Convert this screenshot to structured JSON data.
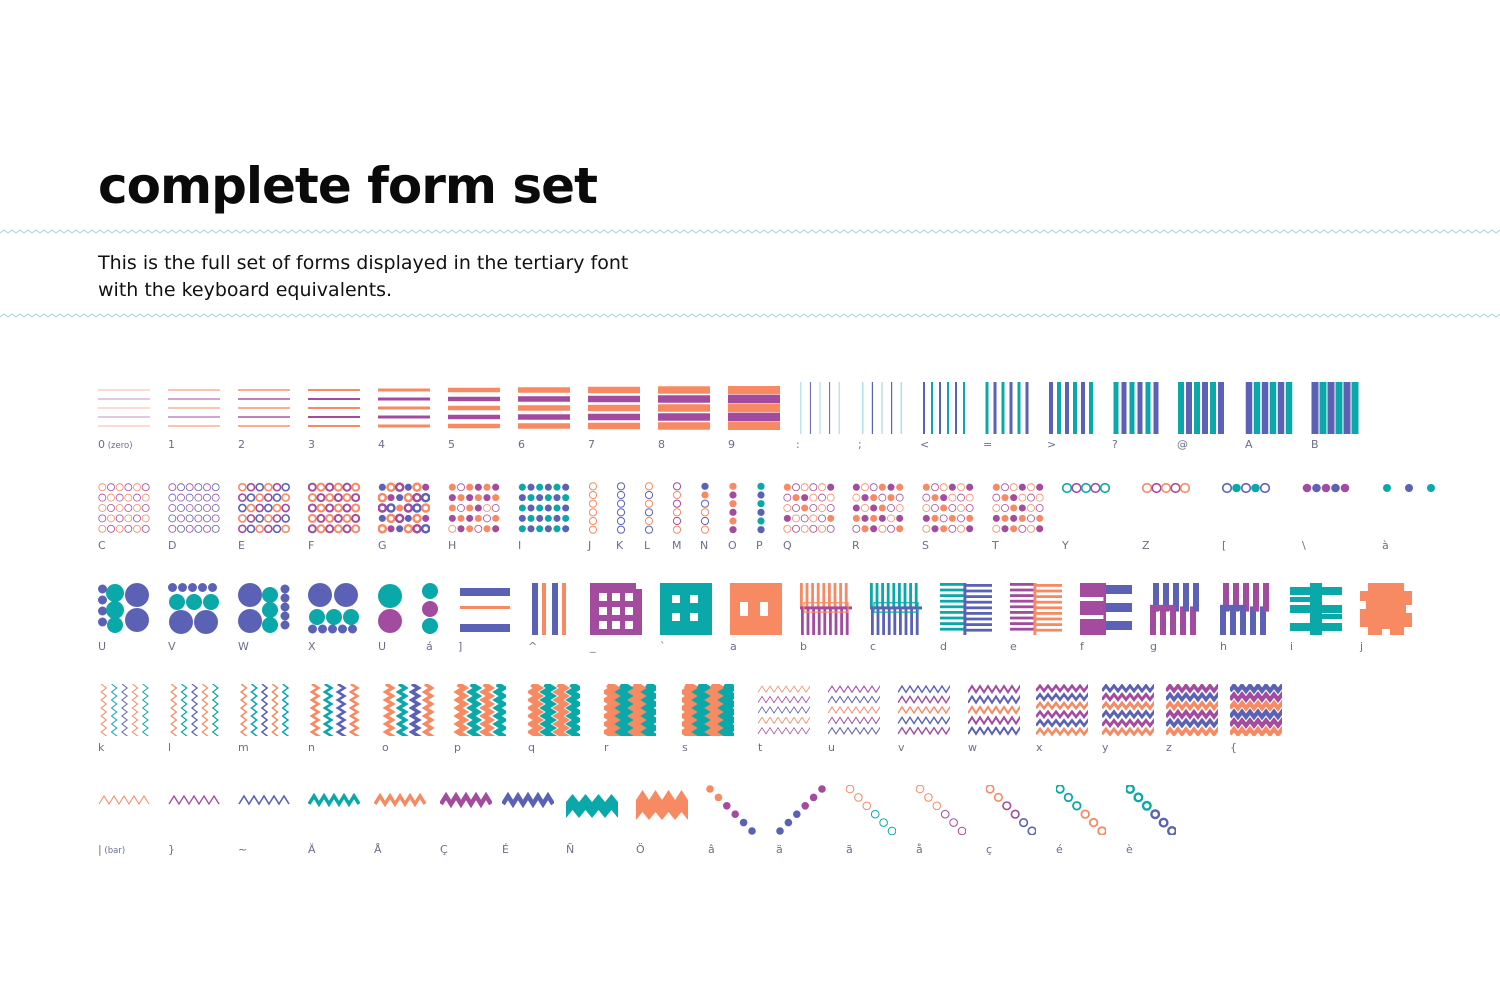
{
  "title": "complete form set",
  "subtitle_lines": [
    "This is the full set of forms displayed in the tertiary font",
    "with the keyboard equivalents."
  ],
  "palette": {
    "orange": "#f78a62",
    "purple": "#a24b9f",
    "blue": "#5b62b5",
    "teal": "#0aa8a8",
    "wave": "#9fd8e3",
    "caption": "#6a6f8a"
  },
  "rows": [
    [
      {
        "key": "0",
        "note": "(zero)",
        "form": {
          "kind": "hlines",
          "n": 5,
          "w": 0.6,
          "colors": [
            "orange",
            "purple"
          ]
        }
      },
      {
        "key": "1",
        "form": {
          "kind": "hlines",
          "n": 5,
          "w": 1,
          "colors": [
            "orange",
            "purple"
          ]
        }
      },
      {
        "key": "2",
        "form": {
          "kind": "hlines",
          "n": 5,
          "w": 1.4,
          "colors": [
            "orange",
            "purple"
          ]
        }
      },
      {
        "key": "3",
        "form": {
          "kind": "hlines",
          "n": 5,
          "w": 2,
          "colors": [
            "orange",
            "purple"
          ]
        }
      },
      {
        "key": "4",
        "form": {
          "kind": "hlines",
          "n": 5,
          "w": 3,
          "colors": [
            "orange",
            "purple"
          ]
        }
      },
      {
        "key": "5",
        "form": {
          "kind": "hlines",
          "n": 5,
          "w": 4.5,
          "colors": [
            "orange",
            "purple"
          ]
        }
      },
      {
        "key": "6",
        "form": {
          "kind": "hlines",
          "n": 5,
          "w": 5.5,
          "colors": [
            "orange",
            "purple"
          ]
        }
      },
      {
        "key": "7",
        "form": {
          "kind": "hlines",
          "n": 5,
          "w": 6.5,
          "colors": [
            "orange",
            "purple"
          ]
        }
      },
      {
        "key": "8",
        "form": {
          "kind": "hlines",
          "n": 5,
          "w": 7.5,
          "colors": [
            "orange",
            "purple"
          ]
        }
      },
      {
        "key": "9",
        "form": {
          "kind": "hlines",
          "n": 5,
          "w": 8.5,
          "colors": [
            "orange",
            "purple"
          ]
        }
      },
      {
        "key": ":",
        "form": {
          "kind": "vlines",
          "n": 5,
          "w": 1,
          "colors": [
            "wave",
            "blue"
          ]
        }
      },
      {
        "key": ";",
        "form": {
          "kind": "vlines",
          "n": 5,
          "w": 1.2,
          "colors": [
            "wave",
            "blue"
          ]
        }
      },
      {
        "key": "<",
        "form": {
          "kind": "vlines",
          "n": 6,
          "w": 2,
          "colors": [
            "blue",
            "teal"
          ]
        }
      },
      {
        "key": "=",
        "form": {
          "kind": "vlines",
          "n": 6,
          "w": 3,
          "colors": [
            "teal",
            "blue"
          ]
        }
      },
      {
        "key": ">",
        "form": {
          "kind": "vlines",
          "n": 6,
          "w": 4,
          "colors": [
            "blue",
            "teal"
          ]
        }
      },
      {
        "key": "?",
        "form": {
          "kind": "vlines",
          "n": 6,
          "w": 5,
          "colors": [
            "teal",
            "blue"
          ]
        }
      },
      {
        "key": "@",
        "form": {
          "kind": "vlines",
          "n": 6,
          "w": 6,
          "colors": [
            "teal",
            "blue"
          ]
        }
      },
      {
        "key": "A",
        "form": {
          "kind": "vlines",
          "n": 6,
          "w": 6.5,
          "colors": [
            "blue",
            "teal"
          ]
        }
      },
      {
        "key": "B",
        "form": {
          "kind": "vlines",
          "n": 6,
          "w": 7,
          "colors": [
            "blue",
            "teal"
          ]
        }
      }
    ],
    [
      {
        "key": "C",
        "form": {
          "kind": "dots",
          "cols": 6,
          "rows": 5,
          "fill": 0,
          "colors": [
            "orange",
            "purple"
          ]
        }
      },
      {
        "key": "D",
        "form": {
          "kind": "dots",
          "cols": 6,
          "rows": 5,
          "fill": 0,
          "colors": [
            "purple",
            "blue"
          ]
        }
      },
      {
        "key": "E",
        "form": {
          "kind": "dots",
          "cols": 6,
          "rows": 5,
          "fill": 0,
          "sw": 1.6,
          "colors": [
            "orange",
            "purple",
            "blue"
          ]
        }
      },
      {
        "key": "F",
        "form": {
          "kind": "dots",
          "cols": 6,
          "rows": 5,
          "fill": 0,
          "sw": 2,
          "colors": [
            "purple",
            "orange"
          ]
        }
      },
      {
        "key": "G",
        "form": {
          "kind": "dots",
          "cols": 6,
          "rows": 5,
          "fill": 0.3,
          "sw": 2.5,
          "colors": [
            "blue",
            "orange",
            "purple"
          ]
        }
      },
      {
        "key": "H",
        "form": {
          "kind": "dots",
          "cols": 6,
          "rows": 5,
          "fill": 0.6,
          "colors": [
            "orange",
            "purple"
          ]
        }
      },
      {
        "key": "I",
        "form": {
          "kind": "dots",
          "cols": 6,
          "rows": 5,
          "fill": 1,
          "colors": [
            "teal",
            "blue"
          ]
        }
      },
      {
        "key": "J",
        "form": {
          "kind": "dotcol",
          "fill": 0,
          "colors": [
            "orange"
          ]
        }
      },
      {
        "key": "K",
        "form": {
          "kind": "dotcol",
          "fill": 0,
          "colors": [
            "blue"
          ]
        }
      },
      {
        "key": "L",
        "form": {
          "kind": "dotcol",
          "fill": 0,
          "colors": [
            "orange",
            "blue"
          ]
        }
      },
      {
        "key": "M",
        "form": {
          "kind": "dotcol",
          "fill": 0,
          "colors": [
            "purple",
            "orange"
          ]
        }
      },
      {
        "key": "N",
        "form": {
          "kind": "dotcol",
          "fill": 0.3,
          "colors": [
            "blue",
            "orange"
          ]
        }
      },
      {
        "key": "O",
        "form": {
          "kind": "dotcol",
          "fill": 1,
          "colors": [
            "orange",
            "purple"
          ]
        }
      },
      {
        "key": "P",
        "form": {
          "kind": "dotcol",
          "fill": 1,
          "colors": [
            "teal",
            "blue"
          ]
        }
      },
      {
        "key": "Q",
        "form": {
          "kind": "dots",
          "cols": 6,
          "rows": 5,
          "fill": 0.2,
          "colors": [
            "orange",
            "purple"
          ]
        }
      },
      {
        "key": "R",
        "form": {
          "kind": "dots",
          "cols": 6,
          "rows": 5,
          "fill": 0.5,
          "colors": [
            "purple",
            "orange"
          ]
        }
      },
      {
        "key": "S",
        "form": {
          "kind": "dots",
          "cols": 6,
          "rows": 5,
          "fill": 0.35,
          "colors": [
            "orange",
            "purple"
          ]
        }
      },
      {
        "key": "T",
        "form": {
          "kind": "dots",
          "cols": 6,
          "rows": 5,
          "fill": 0.4,
          "colors": [
            "orange",
            "purple"
          ]
        }
      },
      {
        "key": "Y",
        "form": {
          "kind": "beads",
          "n": 5,
          "fill": 0,
          "colors": [
            "teal",
            "purple"
          ]
        }
      },
      {
        "key": "Z",
        "form": {
          "kind": "beads",
          "n": 5,
          "fill": 0,
          "colors": [
            "orange",
            "purple"
          ]
        }
      },
      {
        "key": "[",
        "form": {
          "kind": "beads",
          "n": 5,
          "fill": 0.5,
          "colors": [
            "blue",
            "teal"
          ]
        }
      },
      {
        "key": "\\",
        "form": {
          "kind": "beads",
          "n": 5,
          "fill": 1,
          "colors": [
            "purple",
            "blue"
          ]
        }
      },
      {
        "key": "à",
        "form": {
          "kind": "beads",
          "n": 3,
          "fill": 1,
          "spread": true,
          "colors": [
            "teal",
            "blue"
          ]
        }
      }
    ],
    [
      {
        "key": "U",
        "form": {
          "kind": "circlesA",
          "colors": [
            "blue",
            "teal"
          ]
        }
      },
      {
        "key": "V",
        "form": {
          "kind": "circlesB",
          "colors": [
            "blue",
            "teal"
          ]
        }
      },
      {
        "key": "W",
        "form": {
          "kind": "circlesC",
          "colors": [
            "blue",
            "teal"
          ]
        }
      },
      {
        "key": "X",
        "form": {
          "kind": "circlesD",
          "colors": [
            "blue",
            "teal"
          ]
        }
      },
      {
        "key": "U",
        "form": {
          "kind": "circlesE",
          "colors": [
            "teal",
            "purple"
          ]
        }
      },
      {
        "key": "á",
        "form": {
          "kind": "circlesF",
          "colors": [
            "teal",
            "purple"
          ]
        }
      },
      {
        "key": "]",
        "form": {
          "kind": "bars3",
          "colors": [
            "blue",
            "orange"
          ]
        }
      },
      {
        "key": "^",
        "form": {
          "kind": "vbars3",
          "colors": [
            "blue",
            "orange"
          ]
        }
      },
      {
        "key": "_",
        "form": {
          "kind": "lattice",
          "colors": [
            "purple"
          ]
        }
      },
      {
        "key": "`",
        "form": {
          "kind": "windows",
          "colors": [
            "teal"
          ]
        }
      },
      {
        "key": "a",
        "form": {
          "kind": "window2",
          "colors": [
            "orange"
          ]
        }
      },
      {
        "key": "b",
        "form": {
          "kind": "combH",
          "colors": [
            "orange",
            "purple"
          ]
        }
      },
      {
        "key": "c",
        "form": {
          "kind": "combH",
          "colors": [
            "teal",
            "blue"
          ]
        }
      },
      {
        "key": "d",
        "form": {
          "kind": "combV",
          "colors": [
            "blue",
            "teal"
          ]
        }
      },
      {
        "key": "e",
        "form": {
          "kind": "combV",
          "colors": [
            "orange",
            "purple"
          ]
        }
      },
      {
        "key": "f",
        "form": {
          "kind": "steps",
          "colors": [
            "purple",
            "blue"
          ]
        }
      },
      {
        "key": "g",
        "form": {
          "kind": "stairs",
          "colors": [
            "blue",
            "purple"
          ]
        }
      },
      {
        "key": "h",
        "form": {
          "kind": "stairs",
          "colors": [
            "purple",
            "blue"
          ]
        }
      },
      {
        "key": "i",
        "form": {
          "kind": "totem",
          "colors": [
            "teal"
          ]
        }
      },
      {
        "key": "j",
        "form": {
          "kind": "puzzle",
          "colors": [
            "orange"
          ]
        }
      }
    ],
    [
      {
        "key": "k",
        "form": {
          "kind": "vzig",
          "n": 5,
          "w": 1,
          "colors": [
            "orange",
            "teal",
            "blue"
          ]
        }
      },
      {
        "key": "l",
        "form": {
          "kind": "vzig",
          "n": 5,
          "w": 1.2,
          "colors": [
            "orange",
            "teal",
            "blue"
          ]
        }
      },
      {
        "key": "m",
        "form": {
          "kind": "vzig",
          "n": 5,
          "w": 1.5,
          "colors": [
            "orange",
            "teal",
            "blue"
          ]
        }
      },
      {
        "key": "n",
        "form": {
          "kind": "vzig",
          "n": 4,
          "w": 2.5,
          "colors": [
            "orange",
            "teal",
            "blue"
          ]
        }
      },
      {
        "key": "o",
        "form": {
          "kind": "vzig",
          "n": 4,
          "w": 3.5,
          "colors": [
            "orange",
            "teal",
            "blue"
          ]
        }
      },
      {
        "key": "p",
        "form": {
          "kind": "vzig",
          "n": 4,
          "w": 5,
          "colors": [
            "orange",
            "teal"
          ]
        }
      },
      {
        "key": "q",
        "form": {
          "kind": "vzig",
          "n": 4,
          "w": 6,
          "colors": [
            "orange",
            "teal"
          ]
        }
      },
      {
        "key": "r",
        "form": {
          "kind": "vzig",
          "n": 4,
          "w": 7,
          "colors": [
            "orange",
            "teal"
          ]
        }
      },
      {
        "key": "s",
        "form": {
          "kind": "vzig",
          "n": 4,
          "w": 8,
          "colors": [
            "orange",
            "teal"
          ]
        }
      },
      {
        "key": "t",
        "form": {
          "kind": "hzig",
          "n": 5,
          "w": 0.8,
          "colors": [
            "orange",
            "purple",
            "blue"
          ]
        }
      },
      {
        "key": "u",
        "form": {
          "kind": "hzig",
          "n": 5,
          "w": 1,
          "colors": [
            "purple",
            "blue",
            "orange"
          ]
        }
      },
      {
        "key": "v",
        "form": {
          "kind": "hzig",
          "n": 5,
          "w": 1.4,
          "colors": [
            "blue",
            "purple",
            "orange"
          ]
        }
      },
      {
        "key": "w",
        "form": {
          "kind": "hzig",
          "n": 5,
          "w": 2,
          "colors": [
            "purple",
            "blue",
            "orange"
          ]
        }
      },
      {
        "key": "x",
        "form": {
          "kind": "hzig",
          "n": 6,
          "w": 2.6,
          "colors": [
            "purple",
            "blue",
            "orange"
          ]
        }
      },
      {
        "key": "y",
        "form": {
          "kind": "hzig",
          "n": 6,
          "w": 3,
          "colors": [
            "blue",
            "purple",
            "orange"
          ]
        }
      },
      {
        "key": "z",
        "form": {
          "kind": "hzig",
          "n": 6,
          "w": 3.6,
          "colors": [
            "purple",
            "blue",
            "orange"
          ]
        }
      },
      {
        "key": "{",
        "form": {
          "kind": "hzig",
          "n": 6,
          "w": 4.2,
          "colors": [
            "blue",
            "purple",
            "orange"
          ]
        }
      }
    ],
    [
      {
        "key": "|",
        "note": "(bar)",
        "form": {
          "kind": "zig1",
          "w": 1,
          "colors": [
            "orange"
          ]
        }
      },
      {
        "key": "}",
        "form": {
          "kind": "zig1",
          "w": 1.3,
          "colors": [
            "purple"
          ]
        }
      },
      {
        "key": "~",
        "form": {
          "kind": "zig1",
          "w": 1.6,
          "colors": [
            "blue"
          ]
        }
      },
      {
        "key": "Ä",
        "form": {
          "kind": "zig1",
          "w": 3.5,
          "colors": [
            "teal"
          ]
        }
      },
      {
        "key": "Å",
        "form": {
          "kind": "zig1",
          "w": 3.5,
          "colors": [
            "orange"
          ]
        }
      },
      {
        "key": "Ç",
        "form": {
          "kind": "zig1",
          "w": 4.5,
          "colors": [
            "purple"
          ]
        }
      },
      {
        "key": "É",
        "form": {
          "kind": "zig1",
          "w": 4.5,
          "colors": [
            "blue"
          ]
        }
      },
      {
        "key": "Ñ",
        "form": {
          "kind": "zigband",
          "colors": [
            "teal"
          ]
        }
      },
      {
        "key": "Ö",
        "form": {
          "kind": "zigband2",
          "colors": [
            "orange"
          ]
        }
      },
      {
        "key": "â",
        "form": {
          "kind": "diagdots",
          "dir": "down",
          "fill": 1,
          "colors": [
            "orange",
            "purple",
            "blue"
          ]
        }
      },
      {
        "key": "ä",
        "form": {
          "kind": "diagdots",
          "dir": "up",
          "fill": 1,
          "colors": [
            "blue",
            "purple"
          ]
        }
      },
      {
        "key": "ã",
        "form": {
          "kind": "diagdots",
          "dir": "down",
          "fill": 0,
          "colors": [
            "orange",
            "teal"
          ]
        }
      },
      {
        "key": "å",
        "form": {
          "kind": "diagdots",
          "dir": "down",
          "fill": 0,
          "colors": [
            "orange",
            "purple"
          ]
        }
      },
      {
        "key": "ç",
        "form": {
          "kind": "diagdots",
          "dir": "down",
          "fill": 0,
          "sw": 1.6,
          "colors": [
            "orange",
            "purple",
            "blue"
          ]
        }
      },
      {
        "key": "é",
        "form": {
          "kind": "diagdots",
          "dir": "down",
          "fill": 0,
          "sw": 1.8,
          "colors": [
            "teal",
            "orange"
          ]
        }
      },
      {
        "key": "è",
        "form": {
          "kind": "diagdots",
          "dir": "down",
          "fill": 0,
          "sw": 2.4,
          "colors": [
            "teal",
            "blue"
          ]
        }
      }
    ]
  ]
}
